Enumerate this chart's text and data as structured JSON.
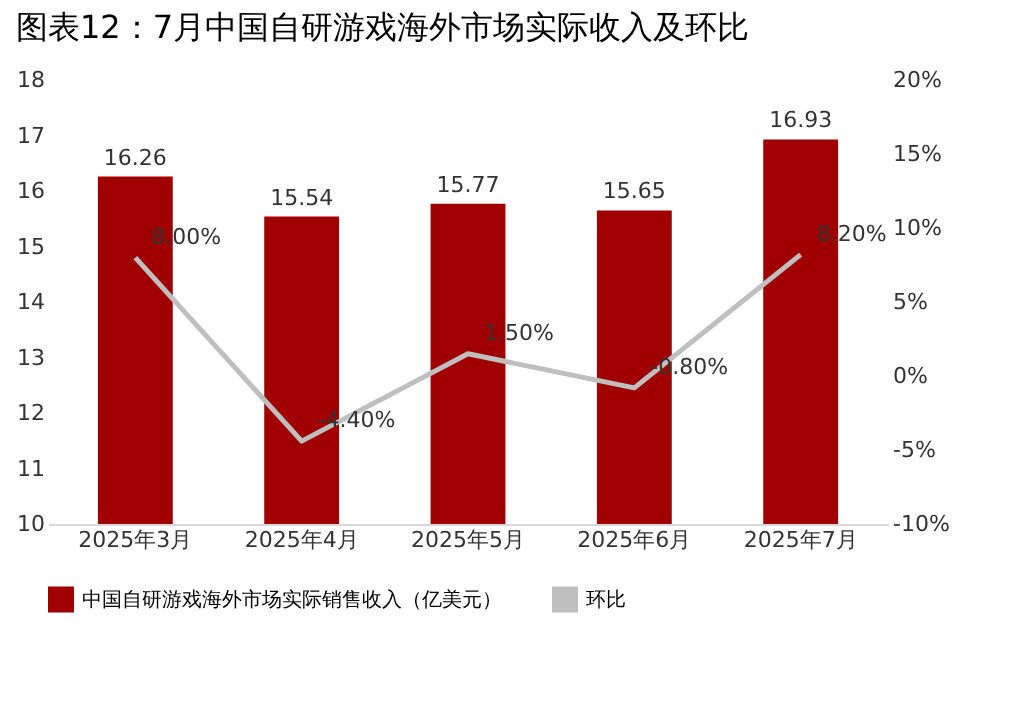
{
  "chart_data": {
    "type": "bar",
    "title": "图表12：7月中国自研游戏海外市场实际收入及环比",
    "categories": [
      "2025年3月",
      "2025年4月",
      "2025年5月",
      "2025年6月",
      "2025年7月"
    ],
    "series": [
      {
        "name": "中国自研游戏海外市场实际销售收入（亿美元）",
        "color": "#a00000",
        "values": [
          16.26,
          15.54,
          15.77,
          15.65,
          16.93
        ],
        "value_labels": [
          "16.26",
          "15.54",
          "15.77",
          "15.65",
          "16.93"
        ]
      },
      {
        "name": "环比",
        "type": "line",
        "axis": "y2",
        "color": "#bfbfbf",
        "values": [
          8.0,
          -4.4,
          1.5,
          -0.8,
          8.2
        ],
        "value_labels": [
          "8.00%",
          "-4.40%",
          "1.50%",
          "-0.80%",
          "8.20%"
        ]
      }
    ],
    "ylim": [
      10,
      18
    ],
    "yticks": [
      10,
      11,
      12,
      13,
      14,
      15,
      16,
      17,
      18
    ],
    "y2lim": [
      -10,
      20
    ],
    "y2ticks": [
      {
        "value": -10,
        "label": "-10%"
      },
      {
        "value": -5,
        "label": "-5%"
      },
      {
        "value": 0,
        "label": "0%"
      },
      {
        "value": 5,
        "label": "5%"
      },
      {
        "value": 10,
        "label": "10%"
      },
      {
        "value": 15,
        "label": "15%"
      },
      {
        "value": 20,
        "label": "20%"
      }
    ],
    "legend": "bottom"
  }
}
